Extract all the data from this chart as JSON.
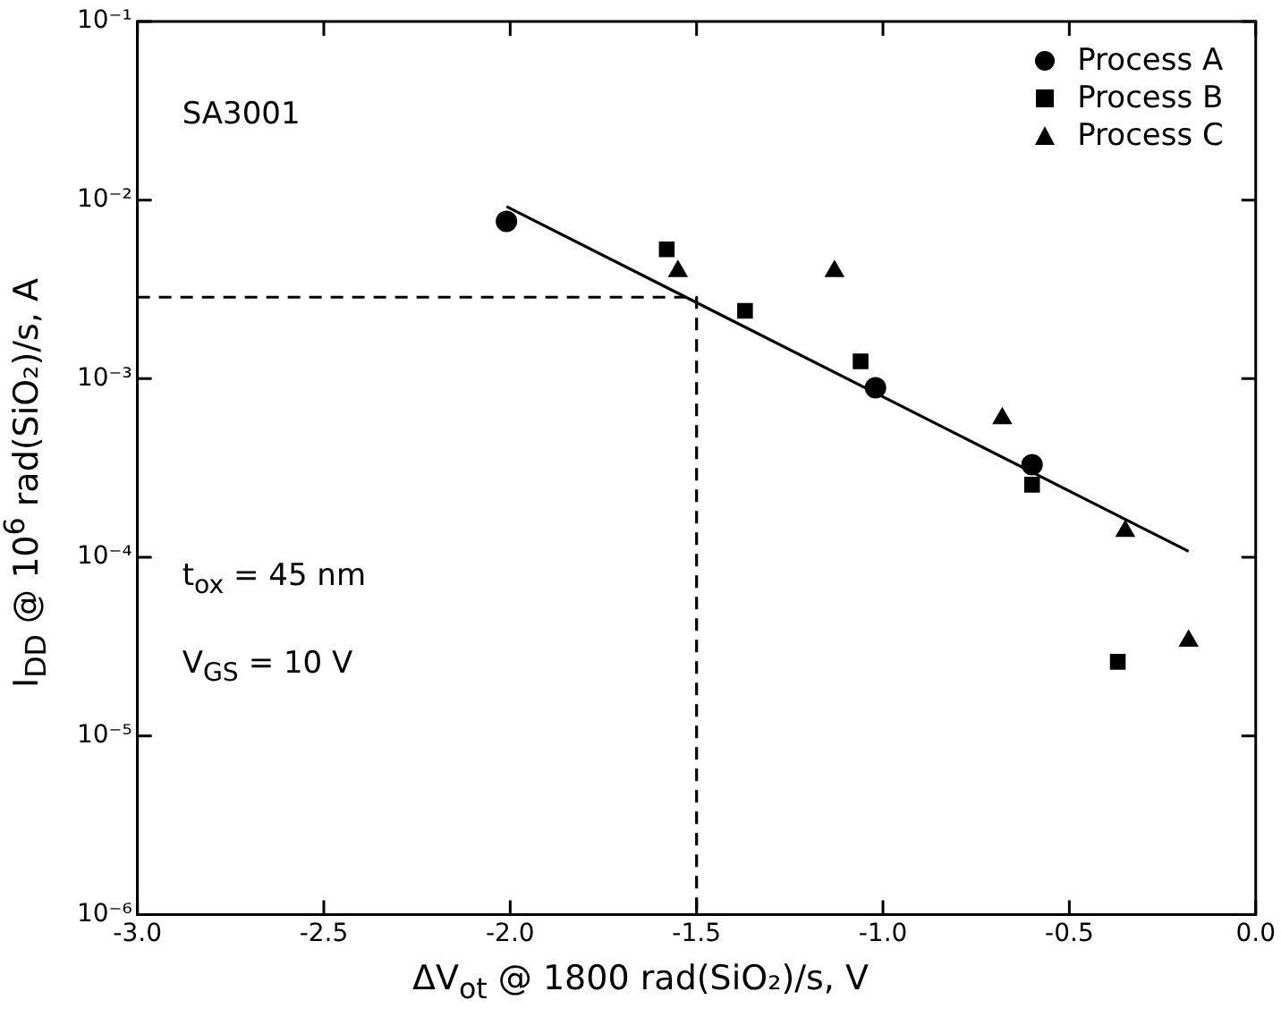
{
  "chart_data": {
    "type": "scatter",
    "xlabel": "ΔV$_{ot}$ @ 1800 rad(SiO₂)/s, V",
    "ylabel": "I$_{DD}$ @ 10$^{6}$ rad(SiO₂)/s, A",
    "annotations": [
      "SA3001",
      "t$_{ox}$ = 45 nm",
      "V$_{GS}$ = 10 V"
    ],
    "series": [
      {
        "name": "Process A",
        "color": "#000000",
        "marker": "circle",
        "x": [
          -2.01,
          -1.02,
          -0.6
        ],
        "values": [
          0.0076,
          0.00089,
          0.00033
        ]
      },
      {
        "name": "Process B",
        "color": "#000000",
        "marker": "square",
        "x": [
          -1.58,
          -1.37,
          -1.06,
          -0.6,
          -0.37
        ],
        "values": [
          0.0053,
          0.0024,
          0.00125,
          0.000255,
          2.6e-05
        ]
      },
      {
        "name": "Process C",
        "color": "#000000",
        "marker": "triangle",
        "x": [
          -1.55,
          -1.13,
          -0.68,
          -0.35,
          -0.18
        ],
        "values": [
          0.004,
          0.004,
          0.0006,
          0.00014,
          3.4e-05
        ]
      },
      {
        "type": "line",
        "color": "#000000",
        "marker": "none",
        "line_style": "solid",
        "x": [
          -2.01,
          -0.18
        ],
        "values": [
          0.0092,
          0.000108
        ]
      },
      {
        "type": "line",
        "color": "#000000",
        "marker": "none",
        "line_style": "dashed",
        "x": [
          -3.0,
          -1.5,
          -1.5
        ],
        "values": [
          0.00286,
          0.00286,
          1e-06
        ]
      }
    ],
    "xlim": [
      -3.0,
      0.0
    ],
    "xticks": [
      {
        "value": -3.0,
        "label": "-3.0"
      },
      {
        "value": -2.5,
        "label": "-2.5"
      },
      {
        "value": -2.0,
        "label": "-2.0"
      },
      {
        "value": -1.5,
        "label": "-1.5"
      },
      {
        "value": -1.0,
        "label": "-1.0"
      },
      {
        "value": -0.5,
        "label": "-0.5"
      },
      {
        "value": 0.0,
        "label": "0.0"
      }
    ],
    "ylim": [
      1e-06,
      0.1
    ],
    "yticks": [
      {
        "value": 1e-06,
        "label": "10⁻⁶"
      },
      {
        "value": 1e-05,
        "label": "10⁻⁵"
      },
      {
        "value": 0.0001,
        "label": "10⁻⁴"
      },
      {
        "value": 0.001,
        "label": "10⁻³"
      },
      {
        "value": 0.01,
        "label": "10⁻²"
      },
      {
        "value": 0.1,
        "label": "10⁻¹"
      }
    ],
    "log": "y",
    "grid": false,
    "legend": "top right"
  }
}
